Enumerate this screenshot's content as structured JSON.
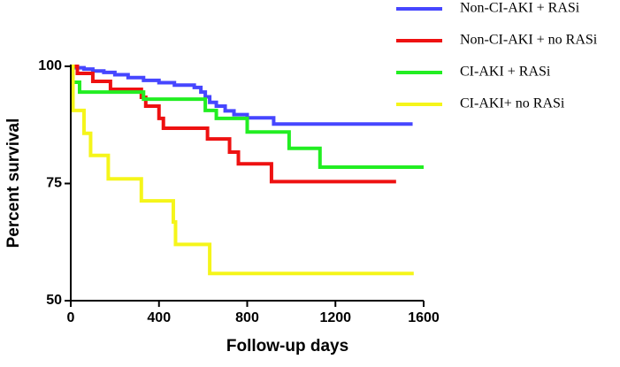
{
  "chart_data": {
    "type": "step",
    "x_label": "Follow-up days",
    "y_label": "Percent survival",
    "xlim": [
      0,
      1600
    ],
    "xticks": [
      0,
      400,
      800,
      1200,
      1600
    ],
    "ylim": [
      50,
      100
    ],
    "yticks": [
      50,
      75,
      100
    ],
    "legend": "top-right",
    "series": [
      {
        "name": "Non-CI-AKI + RASi",
        "color": "#4646ff",
        "x": [
          0,
          20,
          60,
          100,
          150,
          200,
          260,
          330,
          400,
          470,
          560,
          590,
          610,
          630,
          660,
          700,
          740,
          800,
          920,
          1550
        ],
        "values": [
          100,
          99.7,
          99.4,
          99,
          98.7,
          98.2,
          97.6,
          97,
          96.5,
          96,
          95.5,
          94.5,
          93.5,
          92.3,
          91.5,
          90.5,
          89.7,
          89,
          87.7,
          87.7
        ]
      },
      {
        "name": "Non-CI-AKI + no RASi",
        "color": "#ee1111",
        "x": [
          0,
          30,
          100,
          180,
          320,
          340,
          400,
          420,
          620,
          720,
          760,
          910,
          1475
        ],
        "values": [
          100,
          98.5,
          96.8,
          95.1,
          93.4,
          91.5,
          88.9,
          86.8,
          84.5,
          81.7,
          79.2,
          75.4,
          75.4
        ]
      },
      {
        "name": "CI-AKI + RASi",
        "color": "#22ee22",
        "x": [
          0,
          10,
          40,
          330,
          610,
          660,
          800,
          990,
          1130,
          1600
        ],
        "values": [
          100,
          96.6,
          94.5,
          93,
          90.6,
          88.9,
          86,
          82.5,
          78.5,
          78.5
        ]
      },
      {
        "name": "CI-AKI+ no RASi",
        "color": "#f5f51a",
        "x": [
          0,
          10,
          60,
          90,
          170,
          320,
          465,
          475,
          630,
          1555
        ],
        "values": [
          100,
          90.6,
          85.7,
          81,
          76,
          71.3,
          66.8,
          62,
          55.8,
          55.8
        ]
      }
    ]
  }
}
